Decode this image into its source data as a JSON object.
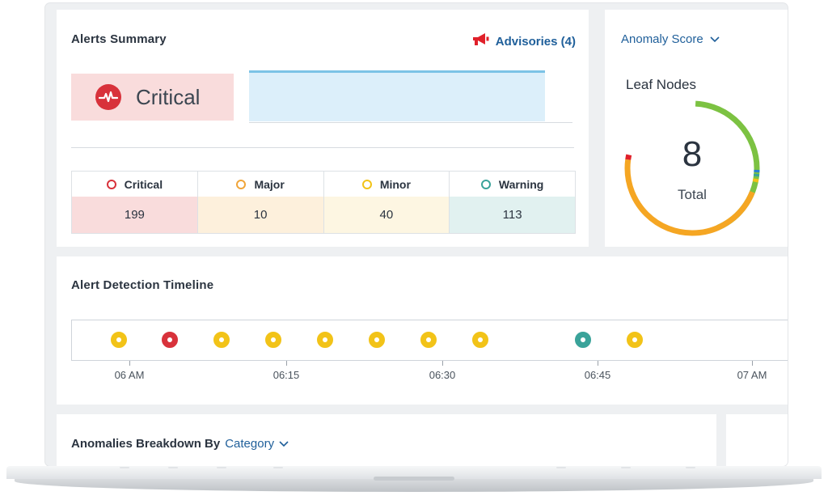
{
  "alerts_summary": {
    "title": "Alerts Summary",
    "advisories_label": "Advisories (4)",
    "critical_label": "Critical",
    "severities": [
      {
        "label": "Critical",
        "value": "199",
        "color": "#d8323b",
        "bg": "#f9dcdc"
      },
      {
        "label": "Major",
        "value": "10",
        "color": "#f0a53a",
        "bg": "#fdf0dc"
      },
      {
        "label": "Minor",
        "value": "40",
        "color": "#f2c318",
        "bg": "#fdf6e2"
      },
      {
        "label": "Warning",
        "value": "113",
        "color": "#3aa39a",
        "bg": "#e1f1f0"
      }
    ]
  },
  "anomaly": {
    "select_label": "Anomaly Score",
    "leaf_title": "Leaf Nodes",
    "total_value": "8",
    "total_label": "Total"
  },
  "timeline": {
    "title": "Alert Detection Timeline",
    "ticks": [
      "06 AM",
      "06:15",
      "06:30",
      "06:45",
      "07 AM"
    ],
    "markers": [
      {
        "severity": "minor",
        "color": "#f2c318"
      },
      {
        "severity": "critical",
        "color": "#d8323b"
      },
      {
        "severity": "minor",
        "color": "#f2c318"
      },
      {
        "severity": "minor",
        "color": "#f2c318"
      },
      {
        "severity": "minor",
        "color": "#f2c318"
      },
      {
        "severity": "minor",
        "color": "#f2c318"
      },
      {
        "severity": "minor",
        "color": "#f2c318"
      },
      {
        "severity": "minor",
        "color": "#f2c318"
      },
      {
        "severity": "warning",
        "color": "#3aa39a"
      },
      {
        "severity": "minor",
        "color": "#f2c318"
      }
    ]
  },
  "breakdown": {
    "title": "Anomalies Breakdown By",
    "category_label": "Category"
  },
  "icons": {
    "advisory": "megaphone-icon",
    "critical": "heartbeat-icon",
    "dropdown": "chevron-down-icon"
  },
  "colors": {
    "accent_blue": "#1f5f9a",
    "critical": "#d8323b",
    "gauge_green": "#7cc242",
    "gauge_orange": "#f5a623"
  }
}
